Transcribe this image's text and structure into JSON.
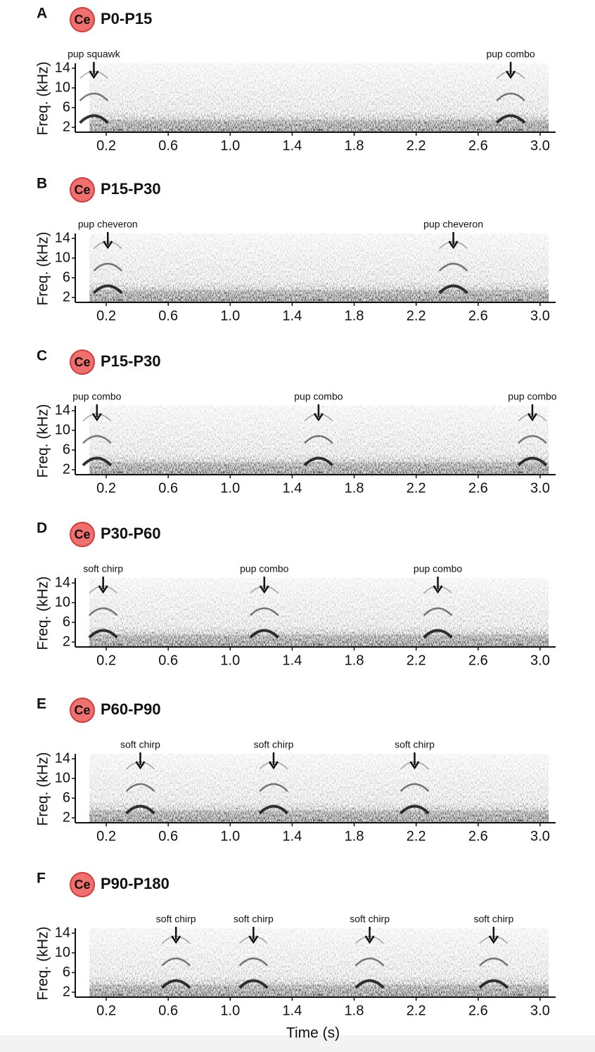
{
  "panels": [
    {
      "letter": "A",
      "badge": "Ce",
      "age": "P0-P15",
      "annotations": [
        {
          "label": "pup squawk",
          "x": 0.12
        },
        {
          "label": "pup combo",
          "x": 2.81
        }
      ]
    },
    {
      "letter": "B",
      "badge": "Ce",
      "age": "P15-P30",
      "annotations": [
        {
          "label": "pup cheveron",
          "x": 0.21
        },
        {
          "label": "pup cheveron",
          "x": 2.44
        }
      ]
    },
    {
      "letter": "C",
      "badge": "Ce",
      "age": "P15-P30",
      "annotations": [
        {
          "label": "pup combo",
          "x": 0.14
        },
        {
          "label": "pup combo",
          "x": 1.57
        },
        {
          "label": "pup combo",
          "x": 2.95
        }
      ]
    },
    {
      "letter": "D",
      "badge": "Ce",
      "age": "P30-P60",
      "annotations": [
        {
          "label": "soft chirp",
          "x": 0.18
        },
        {
          "label": "pup combo",
          "x": 1.22
        },
        {
          "label": "pup combo",
          "x": 2.34
        }
      ]
    },
    {
      "letter": "E",
      "badge": "Ce",
      "age": "P60-P90",
      "annotations": [
        {
          "label": "soft chirp",
          "x": 0.42
        },
        {
          "label": "soft chirp",
          "x": 1.28
        },
        {
          "label": "soft chirp",
          "x": 2.19
        }
      ]
    },
    {
      "letter": "F",
      "badge": "Ce",
      "age": "P90-P180",
      "annotations": [
        {
          "label": "soft chirp",
          "x": 0.65
        },
        {
          "label": "soft chirp",
          "x": 1.15
        },
        {
          "label": "soft chirp",
          "x": 1.9
        },
        {
          "label": "soft chirp",
          "x": 2.7
        }
      ]
    }
  ],
  "axes": {
    "xlim": [
      0,
      3.1
    ],
    "ylim": [
      1,
      15
    ],
    "xticks": [
      0.2,
      0.6,
      {
        "value": 1,
        "label": "1.0"
      },
      1.4,
      1.8,
      2.2,
      2.6,
      {
        "value": 3,
        "label": "3.0"
      }
    ],
    "yticks": [
      2,
      6,
      10,
      14
    ],
    "ylabel": "Freq. (kHz)",
    "xlabel": "Time (s)"
  }
}
